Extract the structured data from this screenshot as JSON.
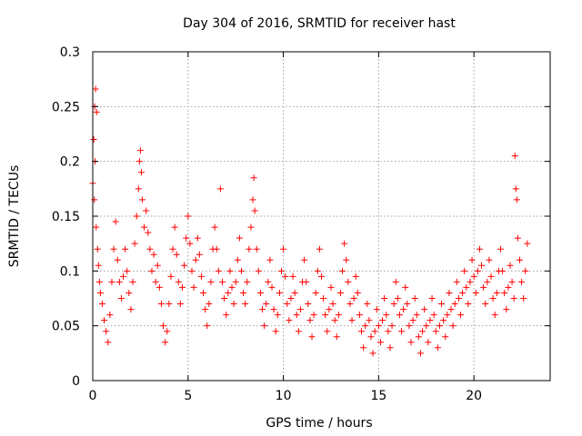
{
  "chart_data": {
    "type": "scatter",
    "title": "Day 304 of 2016, SRMTID for receiver hast",
    "xlabel": "GPS time / hours",
    "ylabel": "SRMTID / TECUs",
    "xlim": [
      0,
      24
    ],
    "ylim": [
      0,
      0.3
    ],
    "xticks": [
      0,
      5,
      10,
      15,
      20
    ],
    "xtick_labels": [
      "0",
      "5",
      "10",
      "15",
      "20"
    ],
    "yticks": [
      0,
      0.05,
      0.1,
      0.15,
      0.2,
      0.25,
      0.3
    ],
    "ytick_labels": [
      "0",
      "0.05",
      "0.1",
      "0.15",
      "0.2",
      "0.25",
      "0.3"
    ],
    "grid": true,
    "marker": "plus",
    "color": "#ff0000",
    "series": [
      {
        "points": [
          [
            0.0,
            0.18
          ],
          [
            0.05,
            0.22
          ],
          [
            0.1,
            0.25
          ],
          [
            0.15,
            0.266
          ],
          [
            0.2,
            0.245
          ],
          [
            0.12,
            0.2
          ],
          [
            0.08,
            0.165
          ],
          [
            0.18,
            0.14
          ],
          [
            0.25,
            0.12
          ],
          [
            0.3,
            0.105
          ],
          [
            0.35,
            0.09
          ],
          [
            0.4,
            0.08
          ],
          [
            0.5,
            0.07
          ],
          [
            0.6,
            0.055
          ],
          [
            0.7,
            0.045
          ],
          [
            0.8,
            0.035
          ],
          [
            0.9,
            0.06
          ],
          [
            1.0,
            0.09
          ],
          [
            1.1,
            0.12
          ],
          [
            1.2,
            0.145
          ],
          [
            1.3,
            0.11
          ],
          [
            1.4,
            0.09
          ],
          [
            1.5,
            0.075
          ],
          [
            1.6,
            0.095
          ],
          [
            1.7,
            0.12
          ],
          [
            1.8,
            0.1
          ],
          [
            1.9,
            0.08
          ],
          [
            2.0,
            0.065
          ],
          [
            2.1,
            0.09
          ],
          [
            2.2,
            0.125
          ],
          [
            2.3,
            0.15
          ],
          [
            2.4,
            0.175
          ],
          [
            2.45,
            0.2
          ],
          [
            2.5,
            0.21
          ],
          [
            2.55,
            0.19
          ],
          [
            2.6,
            0.165
          ],
          [
            2.7,
            0.14
          ],
          [
            2.8,
            0.155
          ],
          [
            2.9,
            0.135
          ],
          [
            3.0,
            0.12
          ],
          [
            3.1,
            0.1
          ],
          [
            3.2,
            0.115
          ],
          [
            3.3,
            0.09
          ],
          [
            3.4,
            0.105
          ],
          [
            3.5,
            0.085
          ],
          [
            3.6,
            0.07
          ],
          [
            3.7,
            0.05
          ],
          [
            3.8,
            0.035
          ],
          [
            3.9,
            0.045
          ],
          [
            4.0,
            0.07
          ],
          [
            4.1,
            0.095
          ],
          [
            4.2,
            0.12
          ],
          [
            4.3,
            0.14
          ],
          [
            4.4,
            0.115
          ],
          [
            4.5,
            0.09
          ],
          [
            4.6,
            0.07
          ],
          [
            4.7,
            0.085
          ],
          [
            4.8,
            0.105
          ],
          [
            4.9,
            0.13
          ],
          [
            5.0,
            0.15
          ],
          [
            5.1,
            0.125
          ],
          [
            5.2,
            0.1
          ],
          [
            5.3,
            0.085
          ],
          [
            5.4,
            0.11
          ],
          [
            5.5,
            0.13
          ],
          [
            5.6,
            0.115
          ],
          [
            5.7,
            0.095
          ],
          [
            5.8,
            0.08
          ],
          [
            5.9,
            0.065
          ],
          [
            6.0,
            0.05
          ],
          [
            6.1,
            0.07
          ],
          [
            6.2,
            0.09
          ],
          [
            6.3,
            0.12
          ],
          [
            6.4,
            0.14
          ],
          [
            6.5,
            0.12
          ],
          [
            6.6,
            0.1
          ],
          [
            6.7,
            0.175
          ],
          [
            6.8,
            0.09
          ],
          [
            6.9,
            0.075
          ],
          [
            7.0,
            0.06
          ],
          [
            7.1,
            0.08
          ],
          [
            7.2,
            0.1
          ],
          [
            7.3,
            0.085
          ],
          [
            7.4,
            0.07
          ],
          [
            7.5,
            0.09
          ],
          [
            7.6,
            0.11
          ],
          [
            7.7,
            0.13
          ],
          [
            7.8,
            0.1
          ],
          [
            7.9,
            0.08
          ],
          [
            8.0,
            0.07
          ],
          [
            8.1,
            0.09
          ],
          [
            8.2,
            0.12
          ],
          [
            8.3,
            0.14
          ],
          [
            8.4,
            0.165
          ],
          [
            8.45,
            0.185
          ],
          [
            8.5,
            0.155
          ],
          [
            8.6,
            0.12
          ],
          [
            8.7,
            0.1
          ],
          [
            8.8,
            0.08
          ],
          [
            8.9,
            0.065
          ],
          [
            9.0,
            0.05
          ],
          [
            9.1,
            0.07
          ],
          [
            9.2,
            0.09
          ],
          [
            9.3,
            0.11
          ],
          [
            9.4,
            0.085
          ],
          [
            9.5,
            0.065
          ],
          [
            9.6,
            0.045
          ],
          [
            9.7,
            0.06
          ],
          [
            9.8,
            0.08
          ],
          [
            9.9,
            0.1
          ],
          [
            10.0,
            0.12
          ],
          [
            10.1,
            0.095
          ],
          [
            10.2,
            0.07
          ],
          [
            10.3,
            0.055
          ],
          [
            10.4,
            0.075
          ],
          [
            10.5,
            0.095
          ],
          [
            10.6,
            0.08
          ],
          [
            10.7,
            0.06
          ],
          [
            10.8,
            0.045
          ],
          [
            10.9,
            0.065
          ],
          [
            11.0,
            0.09
          ],
          [
            11.1,
            0.11
          ],
          [
            11.2,
            0.09
          ],
          [
            11.3,
            0.07
          ],
          [
            11.4,
            0.055
          ],
          [
            11.5,
            0.04
          ],
          [
            11.6,
            0.06
          ],
          [
            11.7,
            0.08
          ],
          [
            11.8,
            0.1
          ],
          [
            11.9,
            0.12
          ],
          [
            12.0,
            0.095
          ],
          [
            12.1,
            0.075
          ],
          [
            12.2,
            0.06
          ],
          [
            12.3,
            0.045
          ],
          [
            12.4,
            0.065
          ],
          [
            12.5,
            0.085
          ],
          [
            12.6,
            0.07
          ],
          [
            12.7,
            0.055
          ],
          [
            12.8,
            0.04
          ],
          [
            12.9,
            0.06
          ],
          [
            13.0,
            0.08
          ],
          [
            13.1,
            0.1
          ],
          [
            13.2,
            0.125
          ],
          [
            13.3,
            0.11
          ],
          [
            13.4,
            0.09
          ],
          [
            13.5,
            0.07
          ],
          [
            13.6,
            0.055
          ],
          [
            13.7,
            0.075
          ],
          [
            13.8,
            0.095
          ],
          [
            13.9,
            0.08
          ],
          [
            14.0,
            0.06
          ],
          [
            14.1,
            0.045
          ],
          [
            14.2,
            0.03
          ],
          [
            14.3,
            0.05
          ],
          [
            14.4,
            0.07
          ],
          [
            14.5,
            0.055
          ],
          [
            14.6,
            0.04
          ],
          [
            14.7,
            0.025
          ],
          [
            14.8,
            0.045
          ],
          [
            14.9,
            0.065
          ],
          [
            15.0,
            0.05
          ],
          [
            15.1,
            0.035
          ],
          [
            15.2,
            0.055
          ],
          [
            15.3,
            0.075
          ],
          [
            15.4,
            0.06
          ],
          [
            15.5,
            0.045
          ],
          [
            15.6,
            0.03
          ],
          [
            15.7,
            0.05
          ],
          [
            15.8,
            0.07
          ],
          [
            15.9,
            0.09
          ],
          [
            16.0,
            0.075
          ],
          [
            16.1,
            0.06
          ],
          [
            16.2,
            0.045
          ],
          [
            16.3,
            0.065
          ],
          [
            16.4,
            0.085
          ],
          [
            16.5,
            0.07
          ],
          [
            16.6,
            0.05
          ],
          [
            16.7,
            0.035
          ],
          [
            16.8,
            0.055
          ],
          [
            16.9,
            0.075
          ],
          [
            17.0,
            0.06
          ],
          [
            17.1,
            0.04
          ],
          [
            17.2,
            0.025
          ],
          [
            17.3,
            0.045
          ],
          [
            17.4,
            0.065
          ],
          [
            17.5,
            0.05
          ],
          [
            17.6,
            0.035
          ],
          [
            17.7,
            0.055
          ],
          [
            17.8,
            0.075
          ],
          [
            17.9,
            0.06
          ],
          [
            18.0,
            0.045
          ],
          [
            18.1,
            0.03
          ],
          [
            18.2,
            0.05
          ],
          [
            18.3,
            0.07
          ],
          [
            18.4,
            0.055
          ],
          [
            18.5,
            0.04
          ],
          [
            18.6,
            0.06
          ],
          [
            18.7,
            0.08
          ],
          [
            18.8,
            0.065
          ],
          [
            18.9,
            0.05
          ],
          [
            19.0,
            0.07
          ],
          [
            19.1,
            0.09
          ],
          [
            19.2,
            0.075
          ],
          [
            19.3,
            0.06
          ],
          [
            19.4,
            0.08
          ],
          [
            19.5,
            0.1
          ],
          [
            19.6,
            0.085
          ],
          [
            19.7,
            0.07
          ],
          [
            19.8,
            0.09
          ],
          [
            19.9,
            0.11
          ],
          [
            20.0,
            0.095
          ],
          [
            20.1,
            0.08
          ],
          [
            20.2,
            0.1
          ],
          [
            20.3,
            0.12
          ],
          [
            20.4,
            0.105
          ],
          [
            20.5,
            0.085
          ],
          [
            20.6,
            0.07
          ],
          [
            20.7,
            0.09
          ],
          [
            20.8,
            0.11
          ],
          [
            20.9,
            0.095
          ],
          [
            21.0,
            0.075
          ],
          [
            21.1,
            0.06
          ],
          [
            21.2,
            0.08
          ],
          [
            21.3,
            0.1
          ],
          [
            21.4,
            0.12
          ],
          [
            21.5,
            0.1
          ],
          [
            21.6,
            0.08
          ],
          [
            21.7,
            0.065
          ],
          [
            21.8,
            0.085
          ],
          [
            21.9,
            0.105
          ],
          [
            22.0,
            0.09
          ],
          [
            22.1,
            0.075
          ],
          [
            22.15,
            0.205
          ],
          [
            22.2,
            0.175
          ],
          [
            22.25,
            0.165
          ],
          [
            22.3,
            0.13
          ],
          [
            22.4,
            0.11
          ],
          [
            22.5,
            0.09
          ],
          [
            22.6,
            0.075
          ],
          [
            22.7,
            0.1
          ],
          [
            22.8,
            0.125
          ]
        ]
      }
    ]
  }
}
